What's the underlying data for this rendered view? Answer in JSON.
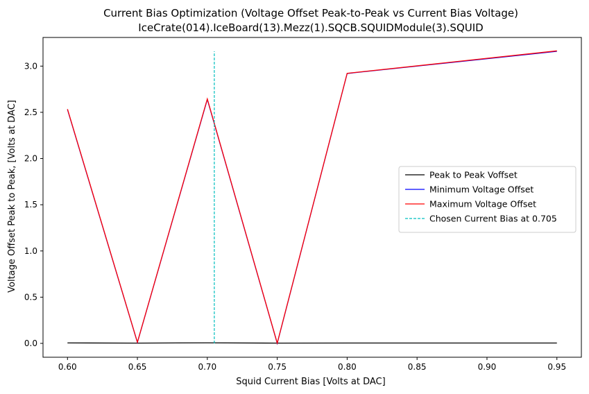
{
  "chart_data": {
    "type": "line",
    "title": "Current Bias Optimization (Voltage Offset Peak-to-Peak vs Current Bias Voltage)",
    "subtitle": "IceCrate(014).IceBoard(13).Mezz(1).SQCB.SQUIDModule(3).SQUID",
    "xlabel": "Squid Current Bias [Volts at DAC]",
    "ylabel": "Voltage Offset Peak to Peak, [Volts at DAC]",
    "xlim": [
      0.5825,
      0.9675
    ],
    "ylim": [
      -0.15,
      3.31
    ],
    "xticks": [
      0.6,
      0.65,
      0.7,
      0.75,
      0.8,
      0.85,
      0.9,
      0.95
    ],
    "xtick_labels": [
      "0.60",
      "0.65",
      "0.70",
      "0.75",
      "0.80",
      "0.85",
      "0.90",
      "0.95"
    ],
    "yticks": [
      0.0,
      0.5,
      1.0,
      1.5,
      2.0,
      2.5,
      3.0
    ],
    "ytick_labels": [
      "0.0",
      "0.5",
      "1.0",
      "1.5",
      "2.0",
      "2.5",
      "3.0"
    ],
    "grid": false,
    "legend_position": "center-right",
    "x": [
      0.6,
      0.65,
      0.7,
      0.75,
      0.8,
      0.95
    ],
    "series": [
      {
        "name": "Peak to Peak Voffset",
        "color": "#000000",
        "style": "solid",
        "values": [
          0.005,
          0.003,
          0.006,
          0.003,
          0.004,
          0.004
        ]
      },
      {
        "name": "Minimum Voltage Offset",
        "color": "#0000ff",
        "style": "solid",
        "values": [
          2.53,
          0.01,
          2.64,
          0.0,
          2.92,
          3.16
        ]
      },
      {
        "name": "Maximum Voltage Offset",
        "color": "#ff0000",
        "style": "solid",
        "values": [
          2.535,
          0.012,
          2.645,
          0.003,
          2.922,
          3.165
        ]
      }
    ],
    "marker": {
      "name": "Chosen Current Bias at 0.705",
      "color": "#00bfbf",
      "style": "dashed",
      "x": 0.705,
      "y_range": [
        0.0,
        3.16
      ]
    }
  }
}
